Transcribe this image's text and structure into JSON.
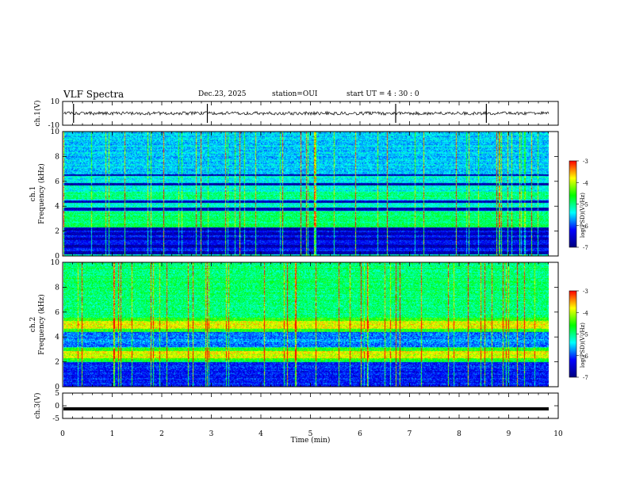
{
  "header": {
    "title": "VLF Spectra",
    "date": "Dec.23, 2025",
    "station": "station=OUI",
    "start_ut": "start UT =  4 : 30 : 0"
  },
  "chart_data": [
    {
      "type": "line",
      "panel": "ch1-waveform",
      "ylabel": "ch.1(V)",
      "ylim": [
        -10,
        10
      ],
      "yticks": [
        10,
        -10
      ],
      "baseline": 0,
      "spikes_min": [
        0.22,
        2.92,
        6.72,
        8.55
      ]
    },
    {
      "type": "heatmap",
      "panel": "ch1-spectrogram",
      "ylabel": "ch.1 Frequency (kHz)",
      "ylim": [
        0,
        10
      ],
      "yticks": [
        0,
        2,
        4,
        6,
        8,
        10
      ],
      "quiet_bands_khz": [
        0.3,
        0.8,
        1.4,
        1.8,
        2.2,
        3.8,
        4.4,
        5.8,
        6.6
      ],
      "signal_band_khz": [
        2.2,
        3.6
      ],
      "colorbar": {
        "label": "log(PSD)(V²/Hz)",
        "range": [
          -7,
          -3
        ],
        "ticks": [
          "-3",
          "-4",
          "-5",
          "-6",
          "-7"
        ]
      }
    },
    {
      "type": "heatmap",
      "panel": "ch2-spectrogram",
      "ylabel": "ch.2 Frequency (kHz)",
      "ylim": [
        0,
        10
      ],
      "yticks": [
        0,
        2,
        4,
        6,
        8,
        10
      ],
      "strong_bands_khz": [
        2.6,
        5.0
      ],
      "colorbar": {
        "label": "log(PSD)(V²/Hz)",
        "range": [
          -7,
          -3
        ],
        "ticks": [
          "-3",
          "-4",
          "-5",
          "-6",
          "-7"
        ]
      }
    },
    {
      "type": "line",
      "panel": "ch3-waveform",
      "ylabel": "ch.3(V)",
      "ylim": [
        -5,
        5
      ],
      "yticks": [
        5,
        0,
        -5
      ],
      "level": -1.2
    }
  ],
  "xaxis": {
    "label": "Time (min)",
    "range": [
      0,
      10
    ],
    "ticks": [
      "0",
      "1",
      "2",
      "3",
      "4",
      "5",
      "6",
      "7",
      "8",
      "9",
      "10"
    ]
  },
  "colors": {
    "background": "#ffffff",
    "axis": "#000000",
    "colormap": [
      "#00007f",
      "#0000ff",
      "#00ffff",
      "#00ff00",
      "#ffff00",
      "#ff0000"
    ]
  }
}
